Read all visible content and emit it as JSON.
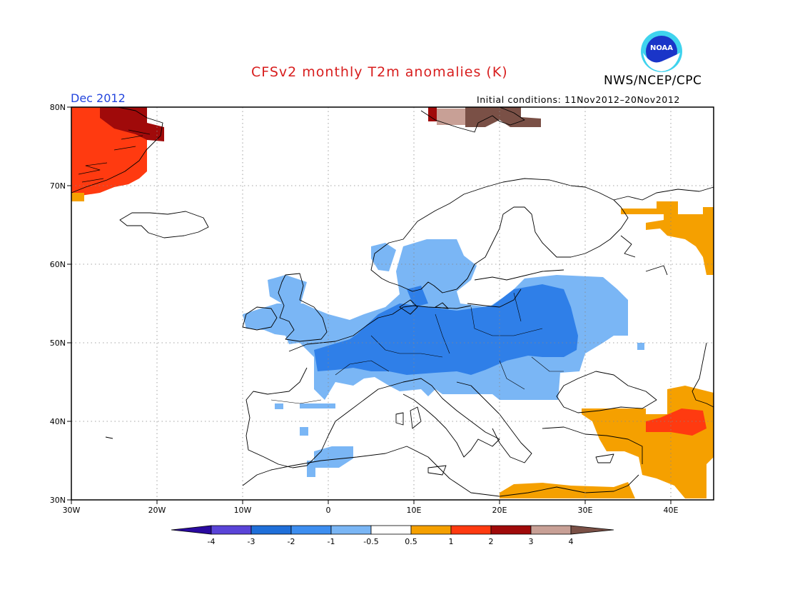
{
  "title": "CFSv2 monthly T2m anomalies (K)",
  "organization": "NWS/NCEP/CPC",
  "logo_text": "NOAA",
  "forecast_month": "Dec 2012",
  "initial_conditions": "Initial conditions: 11Nov2012–20Nov2012",
  "map": {
    "lat_labels": [
      "80N",
      "70N",
      "60N",
      "50N",
      "40N",
      "30N"
    ],
    "lon_labels": [
      "30W",
      "20W",
      "10W",
      "0",
      "10E",
      "20E",
      "30E",
      "40E"
    ],
    "grid": "dotted"
  },
  "colorbar": {
    "tick_labels": [
      "-4",
      "-3",
      "-2",
      "-1",
      "-0.5",
      "0.5",
      "1",
      "2",
      "3",
      "4"
    ],
    "colors": [
      "#2a0aa0",
      "#5a44d8",
      "#1f6fd9",
      "#3d8ef0",
      "#7ab6f5",
      "#ffffff",
      "#f5a000",
      "#ff3a10",
      "#a00a0a",
      "#c8a096",
      "#7a5046"
    ]
  },
  "palette": {
    "cool_strong": "#2f7fe8",
    "cool_weak": "#7ab6f5",
    "warm_weak": "#f5a000",
    "warm_mid": "#ff3a10",
    "warm_strong": "#a00a0a",
    "warm_3_4": "#c8a096",
    "warm_gt4": "#7a5046"
  }
}
